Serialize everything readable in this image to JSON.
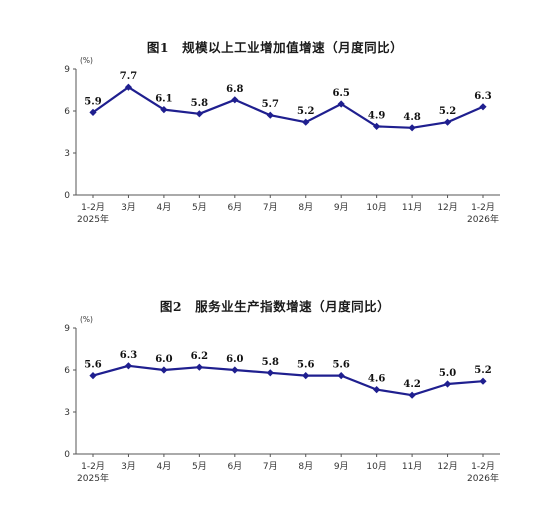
{
  "chart_data": [
    {
      "type": "line",
      "title": "图1　规模以上工业增加值增速（月度同比）",
      "unit": "(%)",
      "categories": [
        "1-2月",
        "3月",
        "4月",
        "5月",
        "6月",
        "7月",
        "8月",
        "9月",
        "10月",
        "11月",
        "12月",
        "1-2月"
      ],
      "category_sublabels": [
        "2025年",
        "",
        "",
        "",
        "",
        "",
        "",
        "",
        "",
        "",
        "",
        "2026年"
      ],
      "series": [
        {
          "values": [
            5.9,
            7.7,
            6.1,
            5.8,
            6.8,
            5.7,
            5.2,
            6.5,
            4.9,
            4.8,
            5.2,
            6.3
          ]
        }
      ],
      "data_labels": [
        "5.9",
        "7.7",
        "6.1",
        "5.8",
        "6.8",
        "5.7",
        "5.2",
        "6.5",
        "4.9",
        "4.8",
        "5.2",
        "6.3"
      ],
      "ylim": [
        0,
        9
      ],
      "yticks": [
        0,
        3,
        6,
        9
      ],
      "ytick_labels": [
        "0",
        "3",
        "6",
        "9"
      ],
      "grid": false,
      "line_color": "#1f1f8f"
    },
    {
      "type": "line",
      "title": "图2　服务业生产指数增速（月度同比）",
      "unit": "(%)",
      "categories": [
        "1-2月",
        "3月",
        "4月",
        "5月",
        "6月",
        "7月",
        "8月",
        "9月",
        "10月",
        "11月",
        "12月",
        "1-2月"
      ],
      "category_sublabels": [
        "2025年",
        "",
        "",
        "",
        "",
        "",
        "",
        "",
        "",
        "",
        "",
        "2026年"
      ],
      "series": [
        {
          "values": [
            5.6,
            6.3,
            6.0,
            6.2,
            6.0,
            5.8,
            5.6,
            5.6,
            4.6,
            4.2,
            5.0,
            5.2
          ]
        }
      ],
      "data_labels": [
        "5.6",
        "6.3",
        "6.0",
        "6.2",
        "6.0",
        "5.8",
        "5.6",
        "5.6",
        "4.6",
        "4.2",
        "5.0",
        "5.2"
      ],
      "ylim": [
        0,
        9
      ],
      "yticks": [
        0,
        3,
        6,
        9
      ],
      "ytick_labels": [
        "0",
        "3",
        "6",
        "9"
      ],
      "grid": false,
      "line_color": "#1f1f8f"
    }
  ]
}
